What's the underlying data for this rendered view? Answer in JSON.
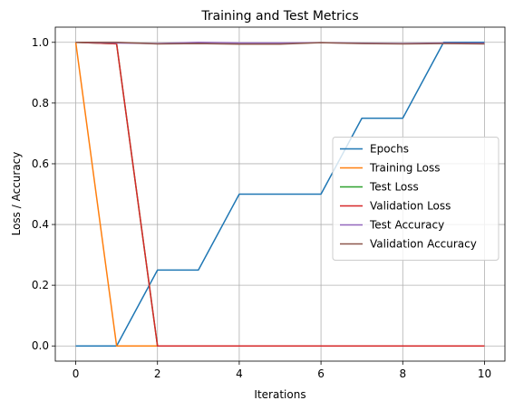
{
  "chart_data": {
    "type": "line",
    "title": "Training and Test Metrics",
    "xlabel": "Iterations",
    "ylabel": "Loss / Accuracy",
    "xlim": [
      -0.5,
      10.5
    ],
    "ylim": [
      -0.05,
      1.05
    ],
    "xticks": [
      0,
      2,
      4,
      6,
      8,
      10
    ],
    "xtick_labels": [
      "0",
      "2",
      "4",
      "6",
      "8",
      "10"
    ],
    "yticks": [
      0.0,
      0.2,
      0.4,
      0.6,
      0.8,
      1.0
    ],
    "ytick_labels": [
      "0.0",
      "0.2",
      "0.4",
      "0.6",
      "0.8",
      "1.0"
    ],
    "grid": true,
    "legend_position": "center-right",
    "x": [
      0,
      1,
      2,
      3,
      4,
      5,
      6,
      7,
      8,
      9,
      10
    ],
    "series": [
      {
        "name": "Epochs",
        "color": "#1f77b4",
        "values": [
          0,
          0,
          0.25,
          0.25,
          0.5,
          0.5,
          0.5,
          0.75,
          0.75,
          1.0,
          1.0
        ]
      },
      {
        "name": "Training Loss",
        "color": "#ff7f0e",
        "values": [
          1.0,
          0,
          0,
          0,
          0,
          0,
          0,
          0,
          0,
          0,
          0
        ]
      },
      {
        "name": "Test Loss",
        "color": "#2ca02c",
        "values": [
          1.0,
          0.995,
          0,
          0,
          0,
          0,
          0,
          0,
          0,
          0,
          0
        ]
      },
      {
        "name": "Validation Loss",
        "color": "#d62728",
        "values": [
          1.0,
          0.995,
          0,
          0,
          0,
          0,
          0,
          0,
          0,
          0,
          0
        ]
      },
      {
        "name": "Test Accuracy",
        "color": "#9467bd",
        "values": [
          1.0,
          0.998,
          0.996,
          1.0,
          0.998,
          0.998,
          0.999,
          0.997,
          0.996,
          0.998,
          0.997
        ]
      },
      {
        "name": "Validation Accuracy",
        "color": "#8c564b",
        "values": [
          1.0,
          1.0,
          0.995,
          0.996,
          0.994,
          0.994,
          0.999,
          0.996,
          0.995,
          0.996,
          0.995
        ]
      }
    ]
  }
}
